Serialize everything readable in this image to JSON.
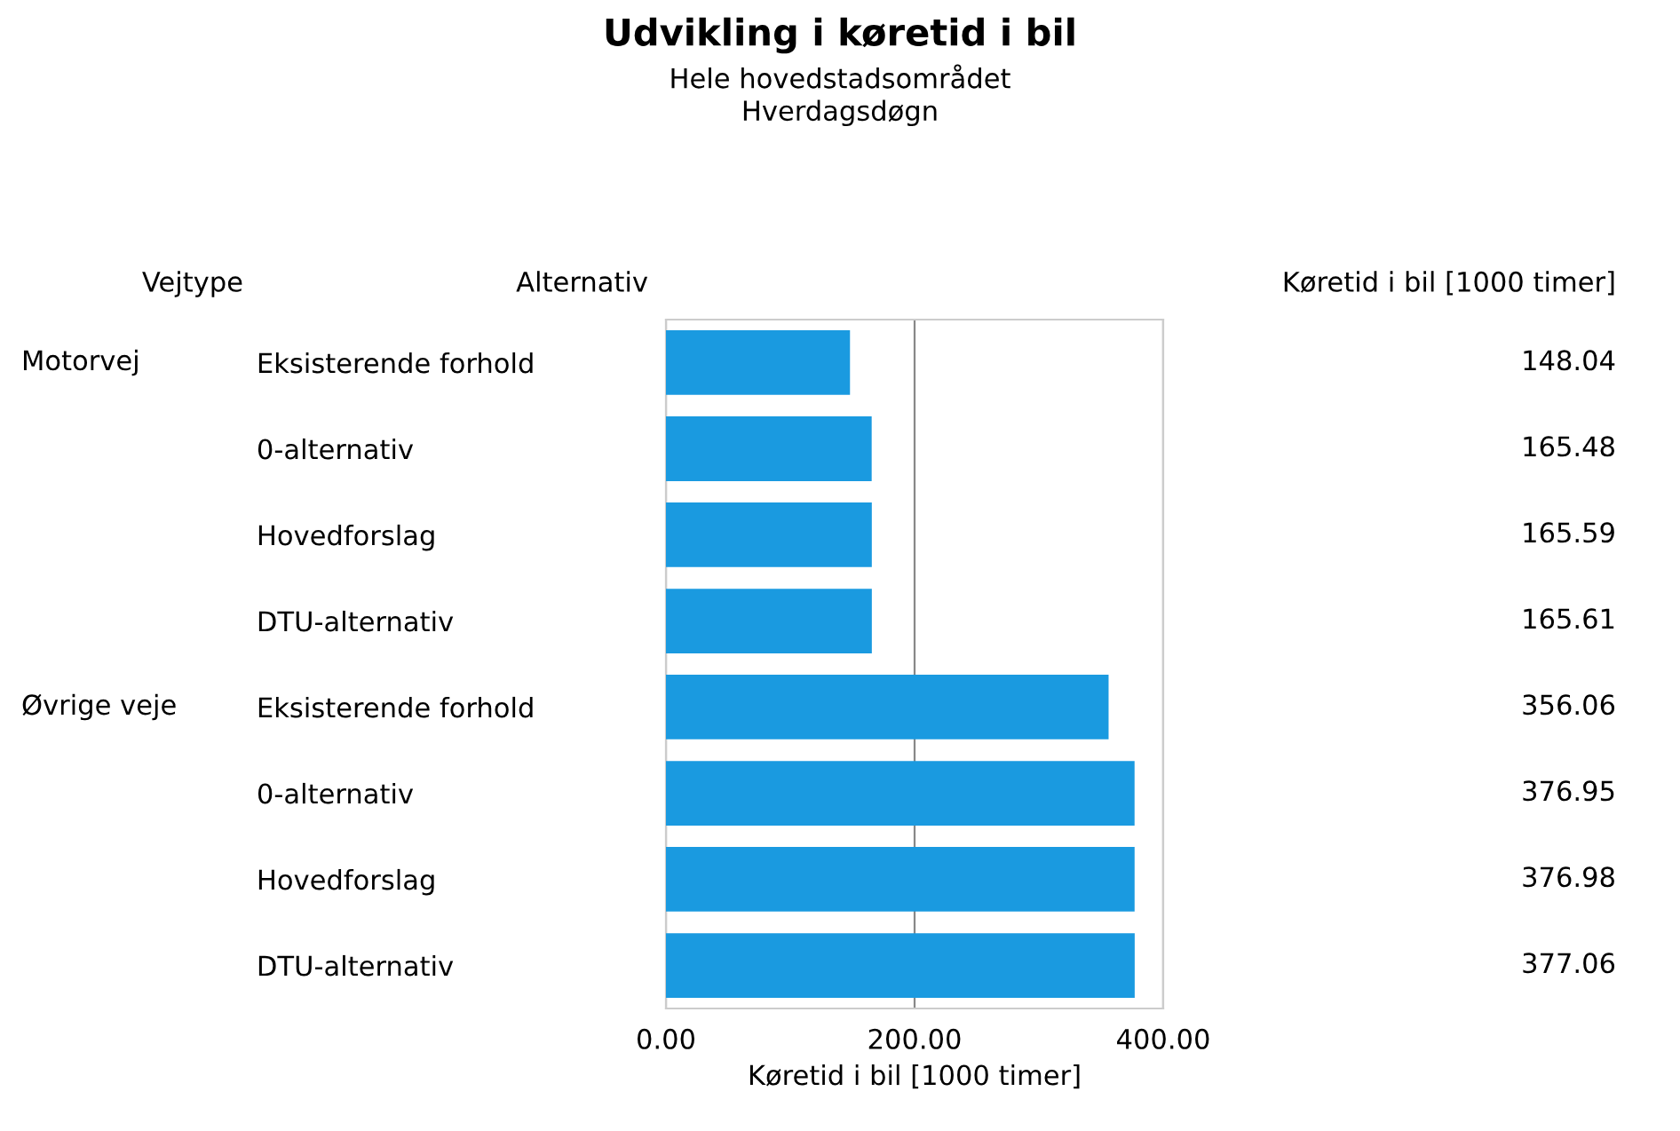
{
  "chart_data": {
    "type": "bar",
    "orientation": "horizontal",
    "title": "Udvikling i køretid i bil",
    "subtitle": "Hele hovedstadsområdet\nHverdagsdøgn",
    "xlabel": "Køretid i bil [1000 timer]",
    "categories": [
      "Eksisterende forhold",
      "0-alternativ",
      "Hovedforslag",
      "DTU-alternativ",
      "Eksisterende forhold",
      "0-alternativ",
      "Hovedforslag",
      "DTU-alternativ"
    ],
    "values": [
      148.04,
      165.48,
      165.59,
      165.61,
      356.06,
      376.95,
      376.98,
      377.06
    ],
    "value_labels": [
      "148.04",
      "165.48",
      "165.59",
      "165.61",
      "356.06",
      "376.95",
      "376.98",
      "377.06"
    ],
    "color": "#1a9ae0",
    "xlim": [
      0,
      400
    ],
    "xticks": [
      {
        "value": 0,
        "label": "0.00"
      },
      {
        "value": 200,
        "label": "200.00"
      },
      {
        "value": 400,
        "label": "400.00"
      }
    ],
    "grid": "x",
    "annotations": [
      "Vejtype",
      "Alternativ",
      "Køretid i bil [1000 timer]",
      "Motorvej",
      "Øvrige veje"
    ]
  }
}
